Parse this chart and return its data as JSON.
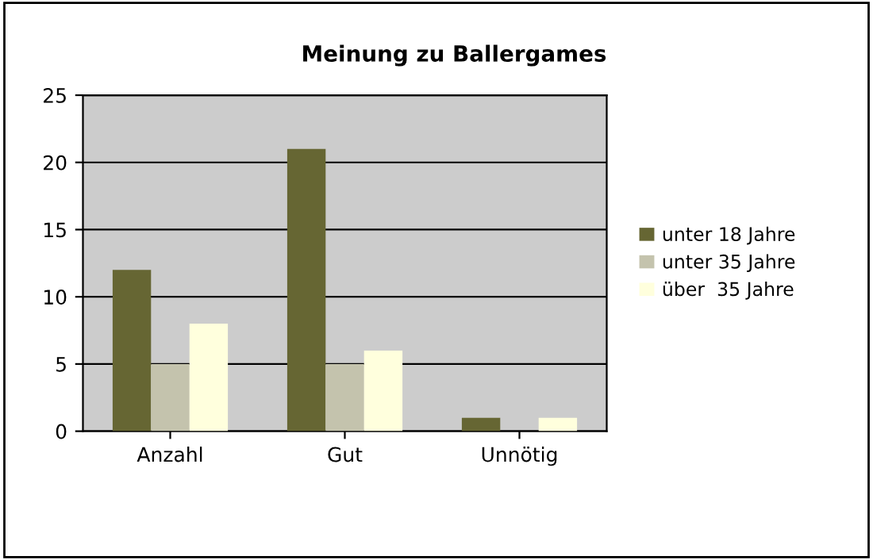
{
  "chart_data": {
    "type": "bar",
    "title": "Meinung zu Ballergames",
    "categories": [
      "Anzahl",
      "Gut",
      "Unnötig"
    ],
    "series": [
      {
        "name": "unter 18 Jahre",
        "color": "#666633",
        "values": [
          12,
          21,
          1
        ]
      },
      {
        "name": "unter 35 Jahre",
        "color": "#c4c3ad",
        "values": [
          5,
          5,
          0
        ]
      },
      {
        "name": "über  35 Jahre",
        "color": "#ffffdd",
        "values": [
          8,
          6,
          1
        ]
      }
    ],
    "ylim": [
      0,
      25
    ],
    "yticks": [
      0,
      5,
      10,
      15,
      20,
      25
    ],
    "grid": "y",
    "legend": "right"
  }
}
